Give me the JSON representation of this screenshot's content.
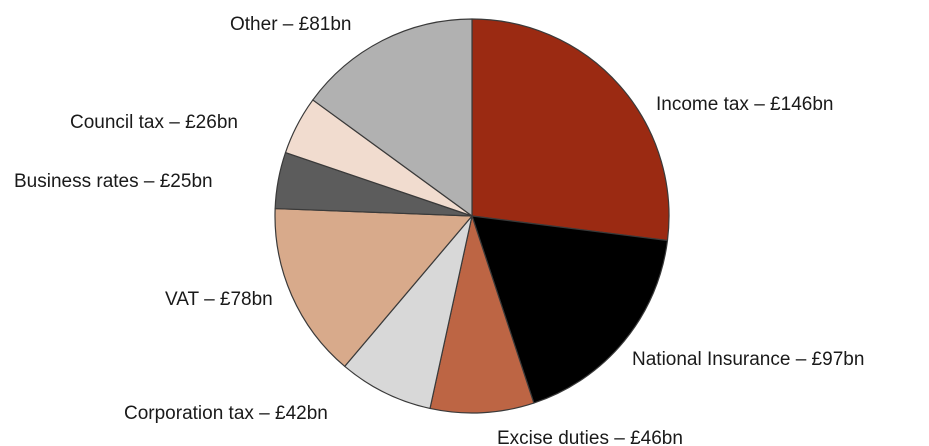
{
  "chart_data": {
    "type": "pie",
    "title": "",
    "slices": [
      {
        "label": "Income tax – £146bn",
        "value": 146,
        "color": "#9b2a12"
      },
      {
        "label": "National Insurance – £97bn",
        "value": 97,
        "color": "#000000"
      },
      {
        "label": "Excise duties – £46bn",
        "value": 46,
        "color": "#bd6544"
      },
      {
        "label": "Corporation tax – £42bn",
        "value": 42,
        "color": "#d8d8d8"
      },
      {
        "label": "VAT – £78bn",
        "value": 78,
        "color": "#d8aa8b"
      },
      {
        "label": "Business rates – £25bn",
        "value": 25,
        "color": "#5c5c5c"
      },
      {
        "label": "Council tax – £26bn",
        "value": 26,
        "color": "#f1dccf"
      },
      {
        "label": "Other – £81bn",
        "value": 81,
        "color": "#b1b1b1"
      }
    ]
  }
}
